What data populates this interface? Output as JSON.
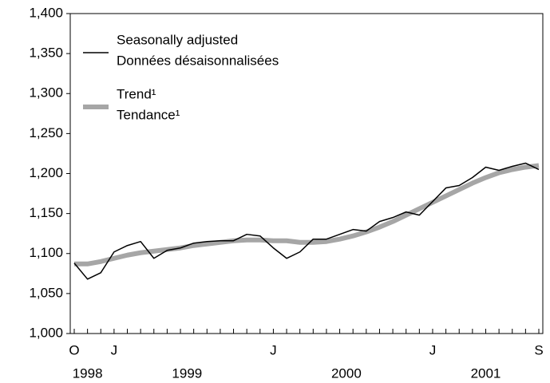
{
  "chart_data": {
    "type": "line",
    "categories": [
      "O",
      null,
      null,
      "J",
      null,
      null,
      null,
      null,
      null,
      null,
      null,
      null,
      null,
      null,
      null,
      "J",
      null,
      null,
      null,
      null,
      null,
      null,
      null,
      null,
      null,
      null,
      null,
      "J",
      null,
      null,
      null,
      null,
      null,
      null,
      null,
      "S"
    ],
    "year_labels": [
      "1998",
      "1999",
      "2000",
      "2001"
    ],
    "series": [
      {
        "name": [
          "Seasonally adjusted",
          "Données désaisonnalisées"
        ],
        "color": "#000000",
        "values": [
          1088,
          1068,
          1076,
          1102,
          1110,
          1115,
          1094,
          1104,
          1107,
          1113,
          1115,
          1116,
          1116,
          1124,
          1122,
          1107,
          1094,
          1102,
          1118,
          1118,
          1124,
          1130,
          1128,
          1140,
          1145,
          1152,
          1148,
          1165,
          1182,
          1185,
          1195,
          1208,
          1204,
          1209,
          1213,
          1205
        ]
      },
      {
        "name": [
          "Trend¹",
          "Tendance¹"
        ],
        "color": "#a6a6a6",
        "values": [
          1087,
          1087,
          1090,
          1094,
          1098,
          1101,
          1103,
          1105,
          1107,
          1110,
          1112,
          1114,
          1116,
          1117,
          1117,
          1116,
          1116,
          1114,
          1114,
          1115,
          1118,
          1122,
          1127,
          1133,
          1140,
          1148,
          1156,
          1164,
          1172,
          1180,
          1188,
          1195,
          1201,
          1205,
          1208,
          1210
        ]
      }
    ],
    "ylim": [
      1000,
      1400
    ],
    "yticks": [
      {
        "value": 1000,
        "label": "1,000"
      },
      {
        "value": 1050,
        "label": "1,050"
      },
      {
        "value": 1100,
        "label": "1,100"
      },
      {
        "value": 1150,
        "label": "1,150"
      },
      {
        "value": 1200,
        "label": "1,200"
      },
      {
        "value": 1250,
        "label": "1,250"
      },
      {
        "value": 1300,
        "label": "1,300"
      },
      {
        "value": 1350,
        "label": "1,350"
      },
      {
        "value": 1400,
        "label": "1,400"
      }
    ],
    "grid": false
  }
}
